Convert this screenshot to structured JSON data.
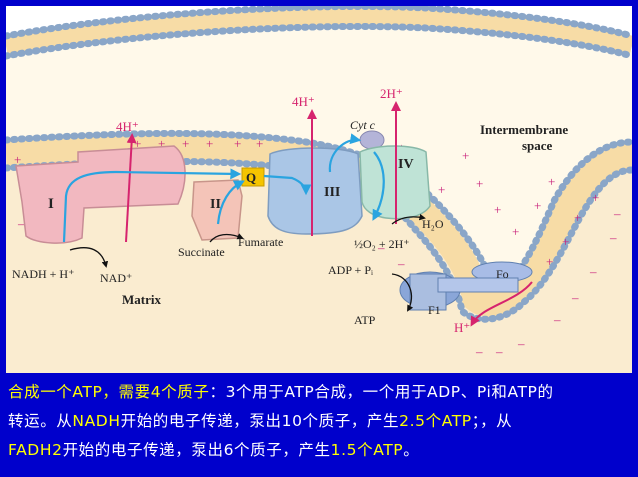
{
  "diagram": {
    "proton_labels": {
      "complex1": "4H⁺",
      "complex3": "4H⁺",
      "complex4": "2H⁺",
      "atp_synthase": "H⁺"
    },
    "complex_labels": {
      "c1": "I",
      "c2": "II",
      "q": "Q",
      "c3": "III",
      "c4": "IV",
      "fo": "Fo",
      "f1": "F1"
    },
    "cytc_label": "Cyt c",
    "intermembrane_label_1": "Intermembrane",
    "intermembrane_label_2": "space",
    "matrix_label": "Matrix",
    "nadh_label": "NADH + H⁺",
    "nad_label": "NAD⁺",
    "succinate_label": "Succinate",
    "fumarate_label": "Fumarate",
    "water_label": "H₂O",
    "oxygen_label": "½O₂ + 2H⁺",
    "adp_label": "ADP + Pᵢ",
    "atp_label": "ATP",
    "plus_sign": "+",
    "minus_sign": "–"
  },
  "caption": {
    "l1a": "合成一个ATP，需要4个质子",
    "l1b": "：3个用于ATP合成，一个用于ADP、Pi和ATP的",
    "l2a": "转运。从",
    "l2b": "NADH",
    "l2c": "开始的电子传递，泵出10个质子，产生",
    "l2d": "2.5个ATP",
    "l2e": "；，从",
    "l3a": "FADH2",
    "l3b": "开始的电子传递，泵出6个质子，产生",
    "l3c": "1.5个ATP",
    "l3d": "。"
  },
  "colors": {
    "background": "#0000cc",
    "caption_highlight": "#ffff00",
    "proton_arrow": "#d6246e",
    "electron_arrow": "#2aa4e0",
    "complex1": "#f2b8c0",
    "complex2": "#f4c4b8",
    "complex3": "#aac6e6",
    "complex4": "#bfe3d6",
    "quinone": "#f5c400",
    "membrane_core": "#f7dca6",
    "matrix": "#faecd0"
  }
}
